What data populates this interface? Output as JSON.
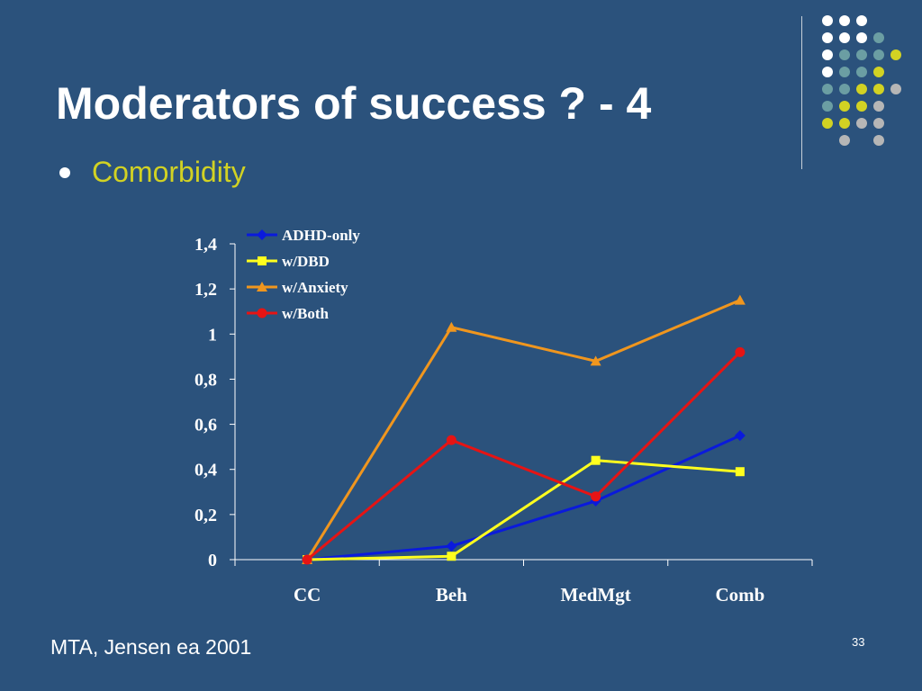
{
  "slide": {
    "title": "Moderators of success ? - 4",
    "bullet": "Comorbidity",
    "footer": "MTA, Jensen ea 2001",
    "page_number": "33"
  },
  "colors": {
    "background": "#2b527c",
    "bullet_text": "#d2d223",
    "dot_white": "#ffffff",
    "dot_teal": "#6b9ea3",
    "dot_yellow": "#d2d223",
    "dot_gray": "#b6b6b6"
  },
  "decoration": {
    "dot_grid": [
      [
        "white",
        "white",
        "white",
        "none",
        "none"
      ],
      [
        "white",
        "white",
        "white",
        "teal",
        "none"
      ],
      [
        "white",
        "teal",
        "teal",
        "teal",
        "yellow"
      ],
      [
        "white",
        "teal",
        "teal",
        "yellow",
        "none"
      ],
      [
        "teal",
        "teal",
        "yellow",
        "yellow",
        "gray"
      ],
      [
        "teal",
        "yellow",
        "yellow",
        "gray",
        "none"
      ],
      [
        "yellow",
        "yellow",
        "gray",
        "gray",
        "none"
      ],
      [
        "none",
        "gray",
        "none",
        "gray",
        "none"
      ]
    ]
  },
  "chart_data": {
    "type": "line",
    "categories": [
      "CC",
      "Beh",
      "MedMgt",
      "Comb"
    ],
    "ylim": [
      0,
      1.4
    ],
    "yticks": [
      "0",
      "0,2",
      "0,4",
      "0,6",
      "0,8",
      "1",
      "1,2",
      "1,4"
    ],
    "ytick_values": [
      0,
      0.2,
      0.4,
      0.6,
      0.8,
      1.0,
      1.2,
      1.4
    ],
    "title": "",
    "xlabel": "",
    "ylabel": "",
    "legend_position": "top-left",
    "grid": false,
    "series": [
      {
        "name": "ADHD-only",
        "color": "#0a1adc",
        "marker": "diamond",
        "values": [
          0,
          0.06,
          0.26,
          0.55
        ]
      },
      {
        "name": "w/DBD",
        "color": "#ffff1e",
        "marker": "square",
        "values": [
          0,
          0.015,
          0.44,
          0.39
        ]
      },
      {
        "name": "w/Anxiety",
        "color": "#f0961e",
        "marker": "triangle",
        "values": [
          0,
          1.03,
          0.88,
          1.15
        ]
      },
      {
        "name": "w/Both",
        "color": "#e61414",
        "marker": "circle",
        "values": [
          0,
          0.53,
          0.28,
          0.92
        ]
      }
    ]
  }
}
